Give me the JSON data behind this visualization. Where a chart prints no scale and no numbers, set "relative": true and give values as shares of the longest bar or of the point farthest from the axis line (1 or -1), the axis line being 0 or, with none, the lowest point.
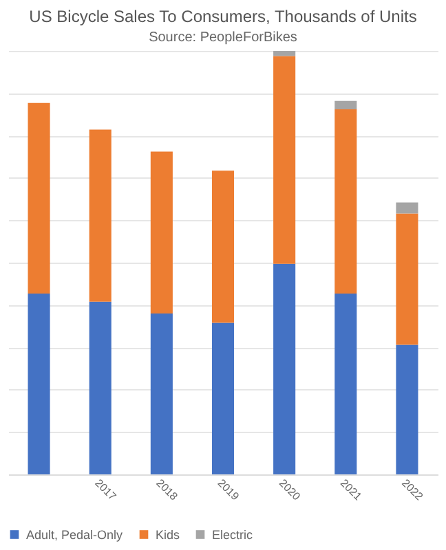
{
  "chart_data": {
    "type": "bar",
    "title": "US Bicycle Sales To Consumers, Thousands of Units",
    "subtitle": "Source: PeopleForBikes",
    "categories": [
      null,
      "2017",
      "2018",
      "2019",
      "2020",
      "2021",
      "2022"
    ],
    "stacked": true,
    "relative": true,
    "grid": "y",
    "legend": "bottom",
    "series": [
      {
        "name": "Adult, Pedal-Only",
        "color": "#4472c4",
        "values": [
          0.427,
          0.408,
          0.38,
          0.358,
          0.497,
          0.427,
          0.306
        ]
      },
      {
        "name": "Kids",
        "color": "#ed7d31",
        "values": [
          0.45,
          0.406,
          0.382,
          0.359,
          0.491,
          0.435,
          0.31
        ]
      },
      {
        "name": "Electric",
        "color": "#a5a5a5",
        "values": [
          null,
          null,
          null,
          null,
          0.012,
          0.02,
          0.026
        ]
      }
    ]
  }
}
